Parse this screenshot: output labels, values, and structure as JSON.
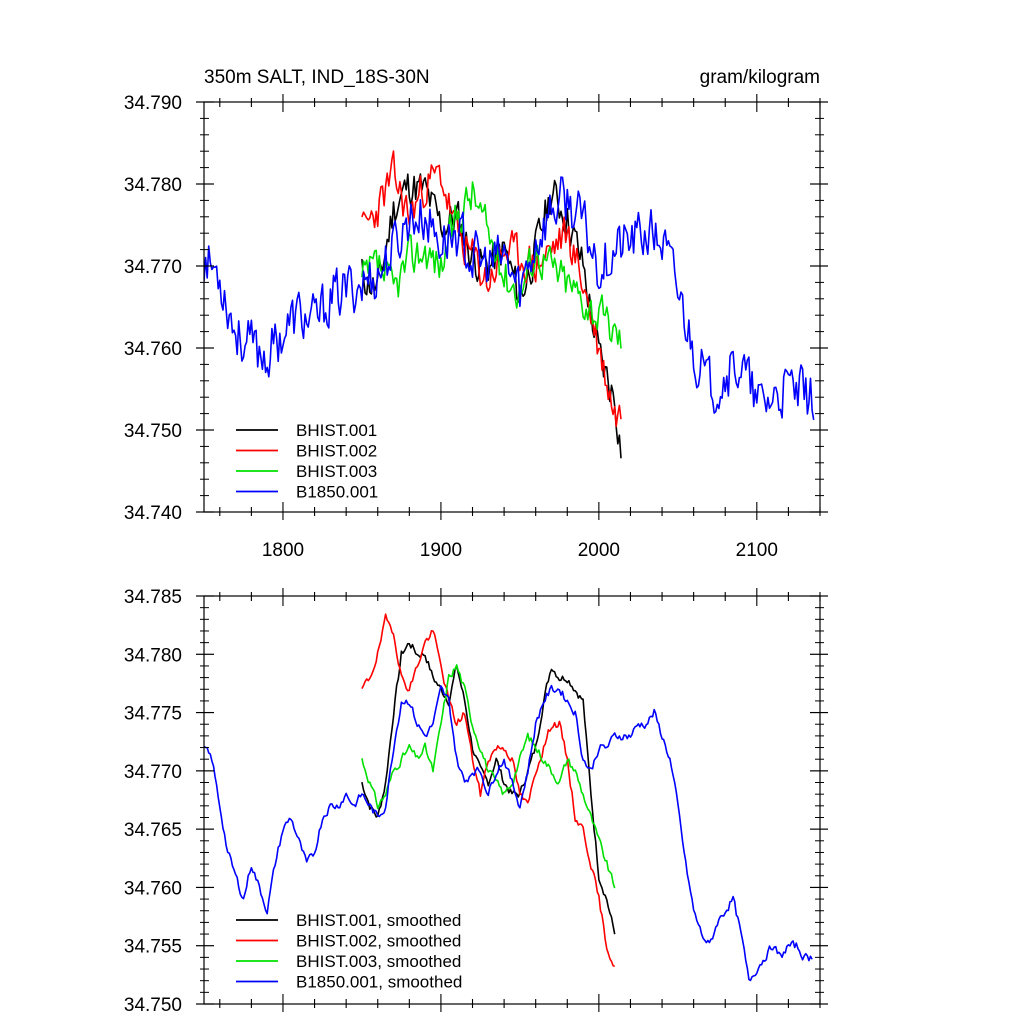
{
  "chart_data": [
    {
      "type": "line",
      "title": "350m SALT, IND_18S-30N",
      "units": "gram/kilogram",
      "xlim": [
        1750,
        2140
      ],
      "ylim": [
        34.74,
        34.79
      ],
      "xticks": [
        1800,
        1900,
        2000,
        2100
      ],
      "xtick_labels": [
        "1800",
        "1900",
        "2000",
        "2100"
      ],
      "yticks": [
        34.74,
        34.75,
        34.76,
        34.77,
        34.78,
        34.79
      ],
      "ytick_labels": [
        "34.740",
        "34.750",
        "34.760",
        "34.770",
        "34.780",
        "34.790"
      ],
      "legend": "bottom-left",
      "series": [
        {
          "name": "BHIST.001",
          "color": "#000000",
          "seed": 11,
          "noise": 0.0035,
          "x": [
            1850,
            1860,
            1870,
            1880,
            1890,
            1900,
            1910,
            1920,
            1930,
            1940,
            1950,
            1960,
            1970,
            1980,
            1990,
            2000,
            2010,
            2014
          ],
          "y": [
            34.769,
            34.767,
            34.777,
            34.78,
            34.779,
            34.775,
            34.776,
            34.771,
            34.77,
            34.772,
            34.766,
            34.772,
            34.779,
            34.776,
            34.77,
            34.759,
            34.754,
            34.748
          ]
        },
        {
          "name": "BHIST.002",
          "color": "#ff0000",
          "seed": 23,
          "noise": 0.0035,
          "x": [
            1850,
            1860,
            1870,
            1880,
            1890,
            1900,
            1910,
            1920,
            1930,
            1940,
            1950,
            1960,
            1970,
            1980,
            1990,
            2000,
            2010,
            2014
          ],
          "y": [
            34.774,
            34.777,
            34.781,
            34.776,
            34.78,
            34.781,
            34.774,
            34.771,
            34.768,
            34.772,
            34.771,
            34.77,
            34.772,
            34.774,
            34.768,
            34.76,
            34.752,
            34.752
          ]
        },
        {
          "name": "BHIST.003",
          "color": "#00e000",
          "seed": 37,
          "noise": 0.0035,
          "x": [
            1850,
            1860,
            1870,
            1880,
            1890,
            1900,
            1910,
            1920,
            1930,
            1940,
            1950,
            1960,
            1970,
            1980,
            1990,
            2000,
            2010,
            2014
          ],
          "y": [
            34.768,
            34.77,
            34.767,
            34.771,
            34.772,
            34.77,
            34.776,
            34.779,
            34.774,
            34.769,
            34.767,
            34.772,
            34.77,
            34.768,
            34.766,
            34.764,
            34.762,
            34.761
          ]
        },
        {
          "name": "B1850.001",
          "color": "#0000ff",
          "seed": 53,
          "noise": 0.0045,
          "x": [
            1750,
            1760,
            1770,
            1780,
            1790,
            1800,
            1810,
            1820,
            1830,
            1840,
            1850,
            1860,
            1870,
            1880,
            1890,
            1900,
            1910,
            1920,
            1930,
            1940,
            1950,
            1960,
            1970,
            1980,
            1990,
            2000,
            2010,
            2020,
            2030,
            2040,
            2050,
            2060,
            2070,
            2080,
            2090,
            2100,
            2110,
            2120,
            2130,
            2136
          ],
          "y": [
            34.771,
            34.769,
            34.762,
            34.76,
            34.759,
            34.762,
            34.764,
            34.763,
            34.766,
            34.767,
            34.768,
            34.769,
            34.772,
            34.776,
            34.776,
            34.773,
            34.774,
            34.771,
            34.77,
            34.771,
            34.767,
            34.773,
            34.777,
            34.778,
            34.775,
            34.77,
            34.772,
            34.773,
            34.774,
            34.773,
            34.767,
            34.76,
            34.755,
            34.757,
            34.758,
            34.753,
            34.754,
            34.755,
            34.754,
            34.754
          ]
        }
      ]
    },
    {
      "type": "line",
      "xlim": [
        1750,
        2140
      ],
      "ylim": [
        34.75,
        34.785
      ],
      "yticks": [
        34.75,
        34.755,
        34.76,
        34.765,
        34.77,
        34.775,
        34.78,
        34.785
      ],
      "ytick_labels": [
        "34.750",
        "34.755",
        "34.760",
        "34.765",
        "34.770",
        "34.775",
        "34.780",
        "34.785"
      ],
      "legend": "bottom-left",
      "series": [
        {
          "name": "BHIST.001, smoothed",
          "color": "#000000",
          "seed": 7,
          "noise": 0.0005,
          "x": [
            1850,
            1855,
            1860,
            1865,
            1870,
            1875,
            1880,
            1885,
            1890,
            1895,
            1900,
            1905,
            1910,
            1915,
            1920,
            1925,
            1930,
            1935,
            1940,
            1945,
            1950,
            1955,
            1960,
            1965,
            1970,
            1975,
            1980,
            1985,
            1990,
            1995,
            2000,
            2005,
            2010
          ],
          "y": [
            34.769,
            34.767,
            34.766,
            34.769,
            34.775,
            34.78,
            34.781,
            34.78,
            34.78,
            34.778,
            34.777,
            34.776,
            34.779,
            34.776,
            34.772,
            34.77,
            34.769,
            34.771,
            34.769,
            34.768,
            34.768,
            34.77,
            34.772,
            34.776,
            34.779,
            34.778,
            34.778,
            34.777,
            34.776,
            34.768,
            34.761,
            34.759,
            34.756
          ]
        },
        {
          "name": "BHIST.002, smoothed",
          "color": "#ff0000",
          "seed": 19,
          "noise": 0.0005,
          "x": [
            1850,
            1855,
            1860,
            1865,
            1870,
            1875,
            1880,
            1885,
            1890,
            1895,
            1900,
            1905,
            1910,
            1915,
            1920,
            1925,
            1930,
            1935,
            1940,
            1945,
            1950,
            1955,
            1960,
            1965,
            1970,
            1975,
            1980,
            1985,
            1990,
            1995,
            2000,
            2005,
            2010
          ],
          "y": [
            34.777,
            34.778,
            34.78,
            34.783,
            34.782,
            34.778,
            34.777,
            34.779,
            34.781,
            34.782,
            34.779,
            34.776,
            34.774,
            34.775,
            34.771,
            34.768,
            34.771,
            34.772,
            34.772,
            34.771,
            34.768,
            34.767,
            34.77,
            34.772,
            34.774,
            34.774,
            34.771,
            34.766,
            34.765,
            34.762,
            34.759,
            34.755,
            34.753
          ]
        },
        {
          "name": "BHIST.003, smoothed",
          "color": "#00e000",
          "seed": 31,
          "noise": 0.0005,
          "x": [
            1850,
            1855,
            1860,
            1865,
            1870,
            1875,
            1880,
            1885,
            1890,
            1895,
            1900,
            1905,
            1910,
            1915,
            1920,
            1925,
            1930,
            1935,
            1940,
            1945,
            1950,
            1955,
            1960,
            1965,
            1970,
            1975,
            1980,
            1985,
            1990,
            1995,
            2000,
            2005,
            2010
          ],
          "y": [
            34.771,
            34.769,
            34.767,
            34.768,
            34.77,
            34.771,
            34.772,
            34.771,
            34.772,
            34.77,
            34.774,
            34.778,
            34.779,
            34.777,
            34.774,
            34.772,
            34.77,
            34.769,
            34.768,
            34.769,
            34.771,
            34.773,
            34.772,
            34.771,
            34.77,
            34.769,
            34.771,
            34.77,
            34.768,
            34.766,
            34.764,
            34.762,
            34.76
          ]
        },
        {
          "name": "B1850.001, smoothed",
          "color": "#0000ff",
          "seed": 43,
          "noise": 0.0005,
          "x": [
            1750,
            1755,
            1760,
            1765,
            1770,
            1775,
            1780,
            1785,
            1790,
            1795,
            1800,
            1805,
            1810,
            1815,
            1820,
            1825,
            1830,
            1835,
            1840,
            1845,
            1850,
            1855,
            1860,
            1865,
            1870,
            1875,
            1880,
            1885,
            1890,
            1895,
            1900,
            1905,
            1910,
            1915,
            1920,
            1925,
            1930,
            1935,
            1940,
            1945,
            1950,
            1955,
            1960,
            1965,
            1970,
            1975,
            1980,
            1985,
            1990,
            1995,
            2000,
            2005,
            2010,
            2015,
            2020,
            2025,
            2030,
            2035,
            2040,
            2045,
            2050,
            2055,
            2060,
            2065,
            2070,
            2075,
            2080,
            2085,
            2090,
            2095,
            2100,
            2105,
            2110,
            2115,
            2120,
            2125,
            2130,
            2135
          ],
          "y": [
            34.772,
            34.771,
            34.767,
            34.763,
            34.761,
            34.759,
            34.762,
            34.76,
            34.758,
            34.762,
            34.765,
            34.766,
            34.764,
            34.762,
            34.763,
            34.766,
            34.767,
            34.767,
            34.768,
            34.767,
            34.768,
            34.767,
            34.766,
            34.767,
            34.772,
            34.776,
            34.776,
            34.774,
            34.773,
            34.774,
            34.777,
            34.776,
            34.771,
            34.769,
            34.77,
            34.77,
            34.768,
            34.77,
            34.771,
            34.769,
            34.767,
            34.77,
            34.774,
            34.776,
            34.777,
            34.777,
            34.776,
            34.775,
            34.771,
            34.77,
            34.772,
            34.772,
            34.773,
            34.773,
            34.773,
            34.774,
            34.774,
            34.775,
            34.773,
            34.771,
            34.767,
            34.762,
            34.758,
            34.756,
            34.755,
            34.757,
            34.758,
            34.759,
            34.756,
            34.752,
            34.753,
            34.754,
            34.755,
            34.754,
            34.755,
            34.755,
            34.754,
            34.754
          ]
        }
      ]
    }
  ]
}
